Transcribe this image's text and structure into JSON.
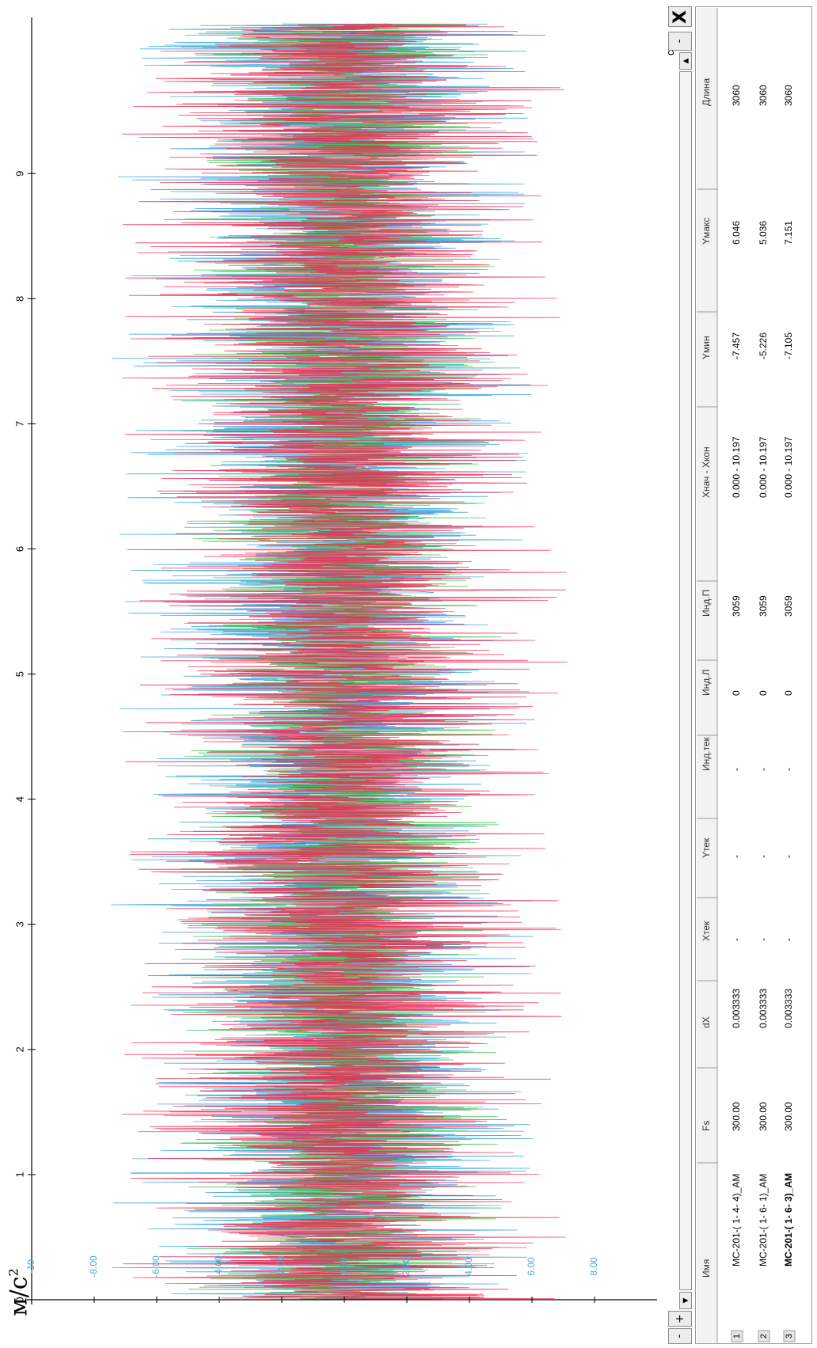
{
  "window": {
    "close_glyph": "X",
    "minus_glyph": "-",
    "plus_glyph": "+",
    "arrow_up_glyph": "▲",
    "arrow_down_glyph": "▼"
  },
  "unit_label": "м/с",
  "unit_power": "2",
  "chart_data": {
    "type": "line",
    "orientation": "rotated-90-ccw",
    "xlabel": "сек.",
    "ylabel": "м/с²",
    "xlim": [
      0,
      10.197
    ],
    "ylim": [
      -10,
      10
    ],
    "x_ticks": [
      0,
      1,
      2,
      3,
      4,
      5,
      6,
      7,
      8,
      9
    ],
    "y_ticks": [
      -10,
      -8,
      -6,
      -4,
      -2,
      0,
      2,
      4,
      6,
      8
    ],
    "y_tick_labels": [
      "-10",
      "-8.00",
      "-6.00",
      "-4.00",
      "-2.00",
      "0.00",
      "2.00",
      "4.00",
      "6.00",
      "8.00"
    ],
    "grid": false,
    "series": [
      {
        "name": "МС-201-( 1- 4- 4)_АМ",
        "color": "#2f9fe0",
        "samples": 3060,
        "dx": 0.003333,
        "ymin": -7.457,
        "ymax": 6.046
      },
      {
        "name": "МС-201-( 1- 6- 1)_АМ",
        "color": "#3cc04a",
        "samples": 3060,
        "dx": 0.003333,
        "ymin": -5.226,
        "ymax": 5.036
      },
      {
        "name": "МС-201-( 1- 6- 3)_АМ",
        "color": "#f02850",
        "samples": 3060,
        "dx": 0.003333,
        "ymin": -7.105,
        "ymax": 7.151
      }
    ]
  },
  "table": {
    "headers": [
      "Имя",
      "Fs",
      "dX",
      "Xтек",
      "Yтек",
      "Инд.тек",
      "Инд.Л",
      "Инд.П",
      "Xнач - Xкон",
      "Yмин",
      "Yмакс",
      "Длина"
    ],
    "rows": [
      {
        "index": "1",
        "cells": [
          "МС-201-( 1- 4- 4)_АМ",
          "300.00",
          "0.003333",
          "-",
          "-",
          "-",
          "0",
          "3059",
          "0.000 - 10.197",
          "-7.457",
          "6.046",
          "3060"
        ]
      },
      {
        "index": "2",
        "cells": [
          "МС-201-( 1- 6- 1)_АМ",
          "300.00",
          "0.003333",
          "-",
          "-",
          "-",
          "0",
          "3059",
          "0.000 - 10.197",
          "-5.226",
          "5.036",
          "3060"
        ]
      },
      {
        "index": "3",
        "cells": [
          "МС-201-( 1- 6- 3)_АМ",
          "300.00",
          "0.003333",
          "-",
          "-",
          "-",
          "0",
          "3059",
          "0.000 - 10.197",
          "-7.105",
          "7.151",
          "3060"
        ]
      }
    ]
  }
}
